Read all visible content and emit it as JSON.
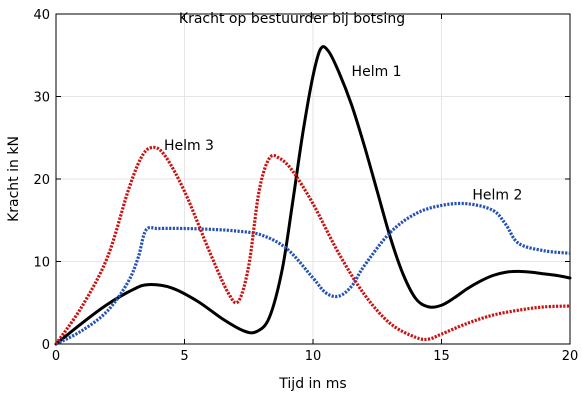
{
  "chart_data": {
    "type": "line",
    "title": "Kracht op bestuurder bij botsing",
    "xlabel": "Tijd in ms",
    "ylabel": "Kracht in kN",
    "xlim": [
      0,
      20
    ],
    "ylim": [
      0,
      40
    ],
    "xticks": [
      0,
      5,
      10,
      15,
      20
    ],
    "yticks": [
      0,
      10,
      20,
      30,
      40
    ],
    "grid": true,
    "series": [
      {
        "name": "Helm 1",
        "color": "#000000",
        "style": "solid",
        "x": [
          0,
          1,
          2,
          3,
          3.6,
          4.5,
          5.5,
          6.5,
          7.3,
          7.8,
          8.3,
          8.8,
          9.2,
          9.6,
          10.0,
          10.3,
          10.6,
          11.0,
          11.5,
          12.0,
          12.5,
          13.0,
          13.5,
          14.0,
          14.5,
          15.0,
          15.5,
          16.0,
          16.5,
          17.0,
          17.5,
          18.0,
          18.5,
          19.0,
          19.5,
          20.0
        ],
        "y": [
          0,
          2.5,
          4.8,
          6.6,
          7.2,
          6.8,
          5.2,
          3.0,
          1.6,
          1.5,
          3.2,
          9.0,
          17.0,
          25.5,
          32.5,
          35.8,
          35.5,
          33.0,
          29.0,
          24.0,
          18.5,
          13.0,
          8.5,
          5.5,
          4.5,
          4.7,
          5.6,
          6.7,
          7.6,
          8.3,
          8.7,
          8.8,
          8.7,
          8.5,
          8.3,
          8.0
        ]
      },
      {
        "name": "Helm 2",
        "color": "#2452b5",
        "style": "dotted",
        "x": [
          0,
          1,
          2,
          2.8,
          3.2,
          3.5,
          4,
          5,
          6,
          7,
          8,
          9,
          10,
          10.5,
          11,
          11.5,
          12,
          13,
          14,
          15,
          16,
          17,
          17.5,
          18,
          19,
          20
        ],
        "y": [
          0,
          1.6,
          4.0,
          7.5,
          10.5,
          13.8,
          14.0,
          14.0,
          13.9,
          13.7,
          13.2,
          11.5,
          8.0,
          6.2,
          5.8,
          7.0,
          9.5,
          13.5,
          15.8,
          16.8,
          17.0,
          16.2,
          14.5,
          12.2,
          11.3,
          11.0
        ]
      },
      {
        "name": "Helm 3",
        "color": "#cc1111",
        "style": "dotted",
        "x": [
          0,
          1,
          2,
          2.8,
          3.3,
          3.7,
          4.2,
          5,
          6,
          6.7,
          7.1,
          7.5,
          7.9,
          8.3,
          8.7,
          9.2,
          10,
          11,
          12,
          13,
          14,
          14.5,
          15,
          16,
          17,
          18,
          19,
          20
        ],
        "y": [
          0,
          4.5,
          10.5,
          18.5,
          22.5,
          23.8,
          23.0,
          18.5,
          11.0,
          6.2,
          5.2,
          9.5,
          18.5,
          22.5,
          22.5,
          21.0,
          17.0,
          11.0,
          6.0,
          2.5,
          0.8,
          0.6,
          1.2,
          2.5,
          3.5,
          4.1,
          4.5,
          4.6
        ]
      }
    ],
    "annotations": [
      {
        "text": "Helm 1",
        "x": 11.5,
        "y": 32.5
      },
      {
        "text": "Helm 2",
        "x": 16.2,
        "y": 17.5
      },
      {
        "text": "Helm 3",
        "x": 4.2,
        "y": 23.5
      }
    ]
  }
}
